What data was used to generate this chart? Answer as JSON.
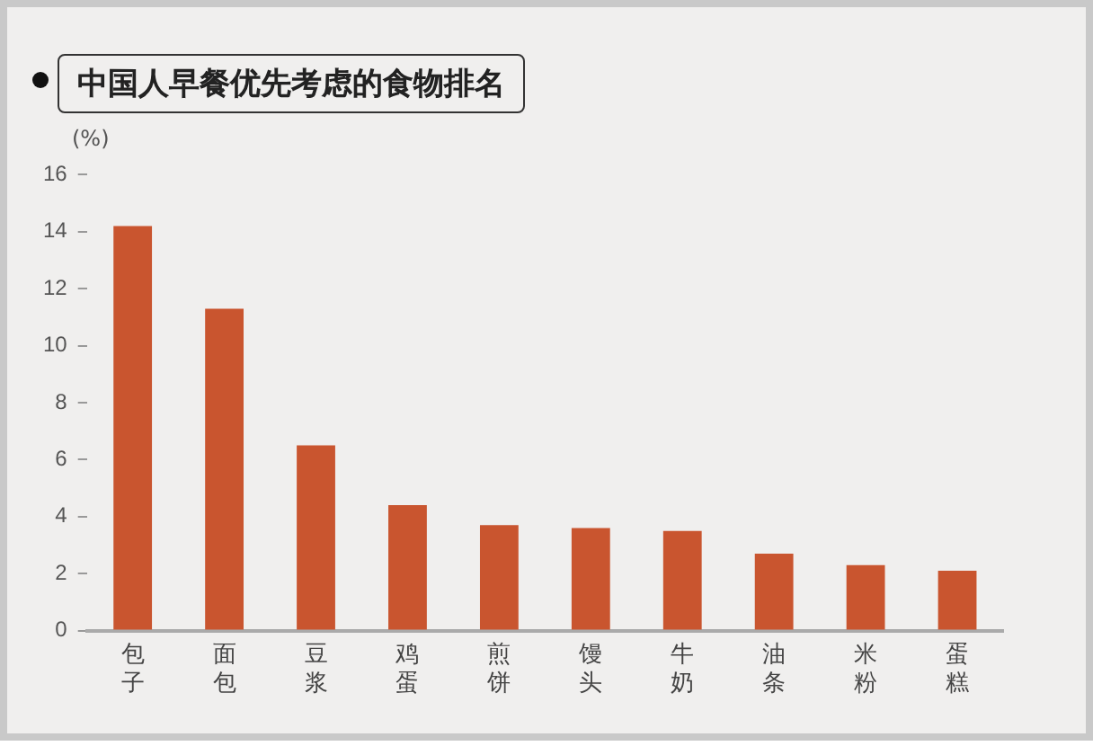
{
  "chart_data": {
    "type": "bar",
    "title": "中国人早餐优先考虑的食物排名",
    "ylabel": "(%)",
    "categories": [
      "包子",
      "面包",
      "豆浆",
      "鸡蛋",
      "煎饼",
      "馒头",
      "牛奶",
      "油条",
      "米粉",
      "蛋糕"
    ],
    "values": [
      14.2,
      11.3,
      6.5,
      4.4,
      3.7,
      3.6,
      3.5,
      2.7,
      2.3,
      2.1
    ],
    "color": "#c9552f",
    "ylim": [
      0,
      16
    ],
    "yticks": [
      0,
      2,
      4,
      6,
      8,
      10,
      12,
      14,
      16
    ],
    "grid": false,
    "legend": false
  }
}
